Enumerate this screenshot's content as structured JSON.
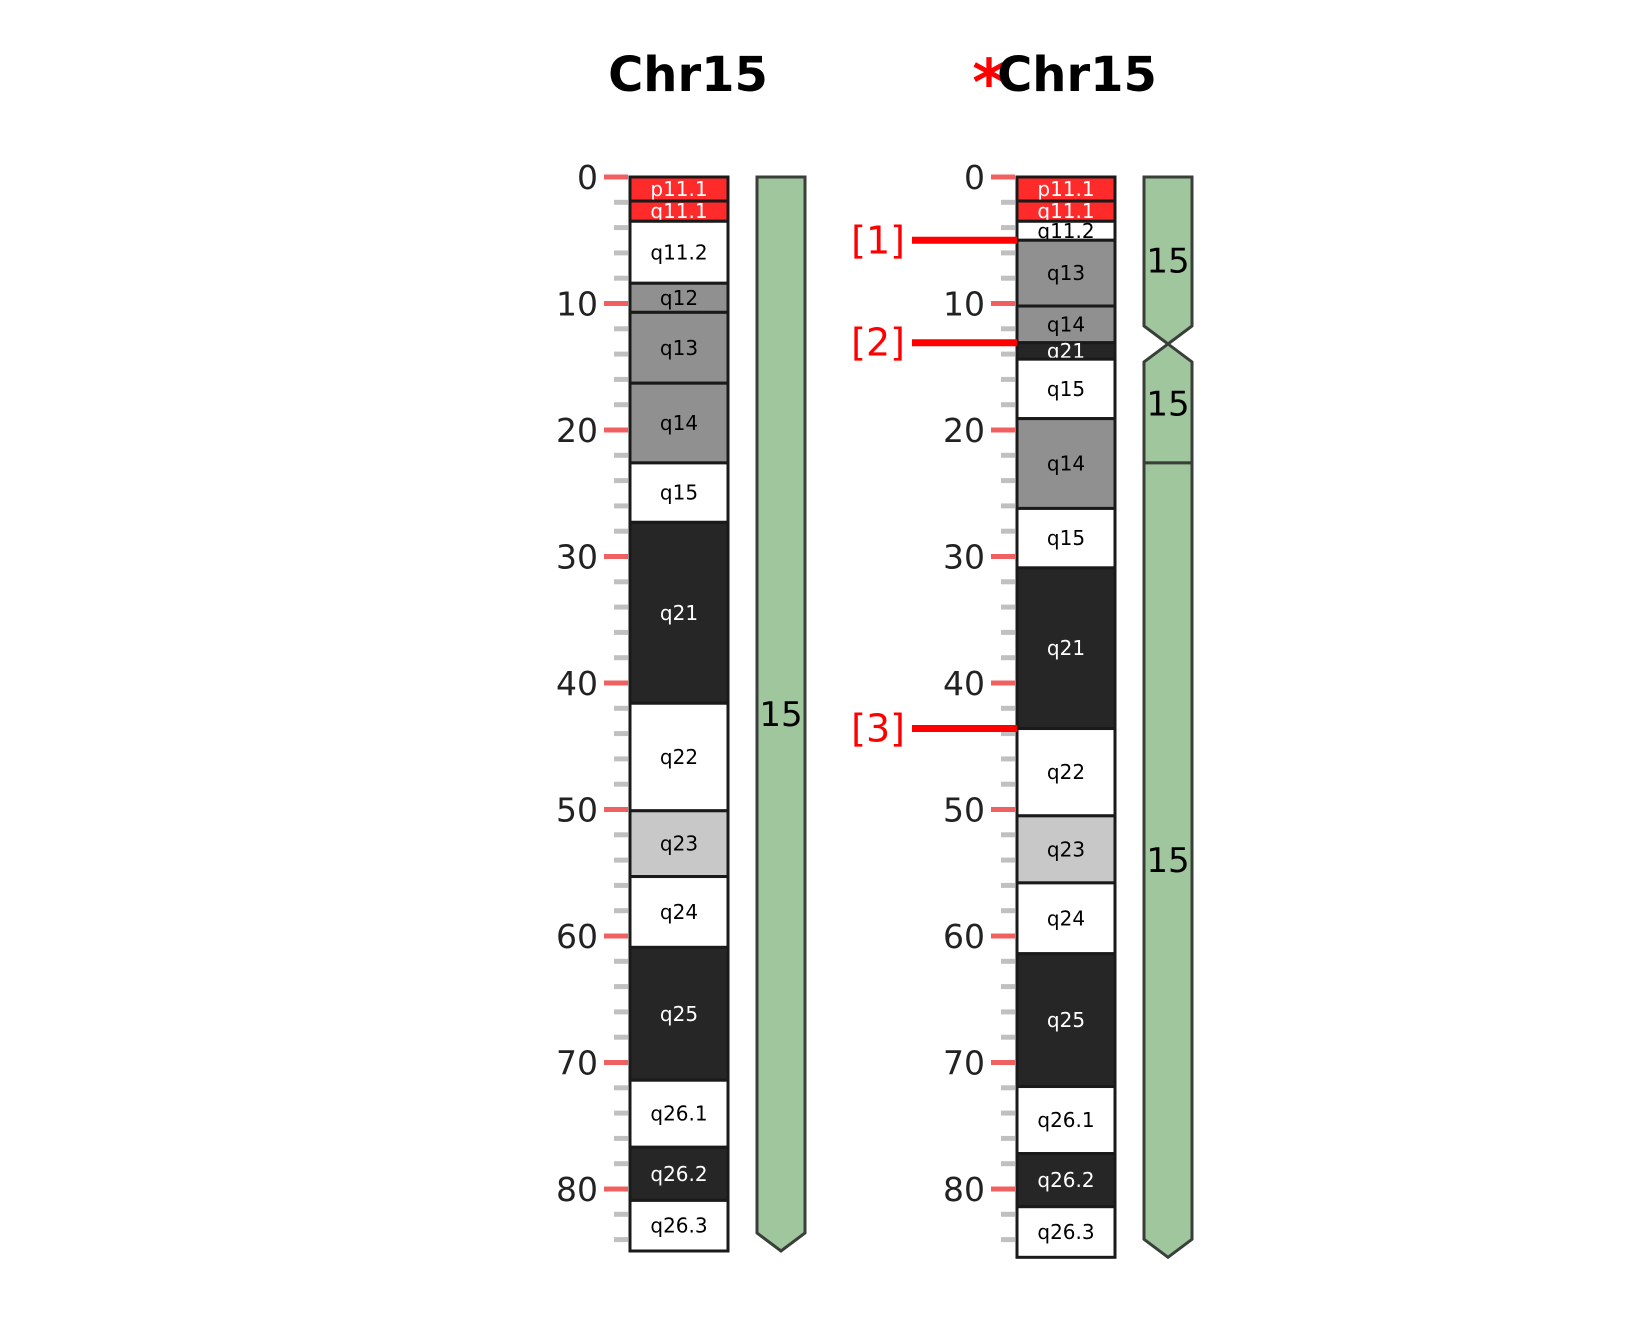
{
  "colors": {
    "gneg": "#ffffff",
    "gpos25": "#c8c8c8",
    "gpos50": "#909090",
    "gpos75": "#606060",
    "gpos100": "#262626",
    "acen": "#ff2a2a",
    "segment": "#a0c69e",
    "segment_stroke": "#3a3f3a",
    "breakpoint": "#ff0000",
    "major_tick": "#f06060",
    "minor_tick": "#c0c0c0"
  },
  "ruler": {
    "min": 0,
    "max": 85,
    "major_step": 10,
    "minor_step": 2,
    "labels": [
      "0",
      "10",
      "20",
      "30",
      "40",
      "50",
      "60",
      "70",
      "80"
    ]
  },
  "chromosomes": [
    {
      "id": "normal",
      "title": "Chr15",
      "marked": false,
      "bands": [
        {
          "name": "p11.1",
          "start": 0,
          "end": 1.9,
          "stain": "acen"
        },
        {
          "name": "q11.1",
          "start": 1.9,
          "end": 3.5,
          "stain": "acen"
        },
        {
          "name": "q11.2",
          "start": 3.5,
          "end": 8.4,
          "stain": "gneg"
        },
        {
          "name": "q12",
          "start": 8.4,
          "end": 10.7,
          "stain": "gpos50"
        },
        {
          "name": "q13",
          "start": 10.7,
          "end": 16.3,
          "stain": "gpos50"
        },
        {
          "name": "q14",
          "start": 16.3,
          "end": 22.6,
          "stain": "gpos50"
        },
        {
          "name": "q15",
          "start": 22.6,
          "end": 27.3,
          "stain": "gneg"
        },
        {
          "name": "q21",
          "start": 27.3,
          "end": 41.6,
          "stain": "gpos100"
        },
        {
          "name": "q22",
          "start": 41.6,
          "end": 50.1,
          "stain": "gneg"
        },
        {
          "name": "q23",
          "start": 50.1,
          "end": 55.3,
          "stain": "gpos25"
        },
        {
          "name": "q24",
          "start": 55.3,
          "end": 60.9,
          "stain": "gneg"
        },
        {
          "name": "q25",
          "start": 60.9,
          "end": 71.4,
          "stain": "gpos100"
        },
        {
          "name": "q26.1",
          "start": 71.4,
          "end": 76.7,
          "stain": "gneg"
        },
        {
          "name": "q26.2",
          "start": 76.7,
          "end": 80.9,
          "stain": "gpos100"
        },
        {
          "name": "q26.3",
          "start": 80.9,
          "end": 84.9,
          "stain": "gneg"
        }
      ],
      "segments": [
        {
          "label": "15",
          "start": 0,
          "end": 84.9,
          "top_shape": "flat",
          "bottom_shape": "point"
        }
      ],
      "breakpoints": []
    },
    {
      "id": "derivative",
      "title": "Chr15",
      "marked": true,
      "marker": "*",
      "bands": [
        {
          "name": "p11.1",
          "start": 0,
          "end": 1.9,
          "stain": "acen"
        },
        {
          "name": "q11.1",
          "start": 1.9,
          "end": 3.5,
          "stain": "acen"
        },
        {
          "name": "q11.2",
          "start": 3.5,
          "end": 5.0,
          "stain": "gneg"
        },
        {
          "name": "q13",
          "start": 5.0,
          "end": 10.2,
          "stain": "gpos50"
        },
        {
          "name": "q14",
          "start": 10.2,
          "end": 13.1,
          "stain": "gpos50"
        },
        {
          "name": "q21",
          "start": 13.1,
          "end": 14.4,
          "stain": "gpos100"
        },
        {
          "name": "q15",
          "start": 14.4,
          "end": 19.1,
          "stain": "gneg"
        },
        {
          "name": "q14",
          "start": 19.1,
          "end": 26.2,
          "stain": "gpos50"
        },
        {
          "name": "q15",
          "start": 26.2,
          "end": 30.9,
          "stain": "gneg"
        },
        {
          "name": "q21",
          "start": 30.9,
          "end": 43.6,
          "stain": "gpos100"
        },
        {
          "name": "q22",
          "start": 43.6,
          "end": 50.5,
          "stain": "gneg"
        },
        {
          "name": "q23",
          "start": 50.5,
          "end": 55.8,
          "stain": "gpos25"
        },
        {
          "name": "q24",
          "start": 55.8,
          "end": 61.4,
          "stain": "gneg"
        },
        {
          "name": "q25",
          "start": 61.4,
          "end": 71.9,
          "stain": "gpos100"
        },
        {
          "name": "q26.1",
          "start": 71.9,
          "end": 77.2,
          "stain": "gneg"
        },
        {
          "name": "q26.2",
          "start": 77.2,
          "end": 81.4,
          "stain": "gpos100"
        },
        {
          "name": "q26.3",
          "start": 81.4,
          "end": 85.4,
          "stain": "gneg"
        }
      ],
      "segments": [
        {
          "label": "15",
          "start": 0,
          "end": 13.2,
          "top_shape": "flat",
          "bottom_shape": "point"
        },
        {
          "label": "15",
          "start": 13.2,
          "end": 22.6,
          "top_shape": "point",
          "bottom_shape": "flat"
        },
        {
          "label": "15",
          "start": 22.6,
          "end": 85.4,
          "top_shape": "flat",
          "bottom_shape": "point"
        }
      ],
      "breakpoints": [
        {
          "label": "[1]",
          "pos": 5.0
        },
        {
          "label": "[2]",
          "pos": 13.1
        },
        {
          "label": "[3]",
          "pos": 43.6
        }
      ]
    }
  ]
}
